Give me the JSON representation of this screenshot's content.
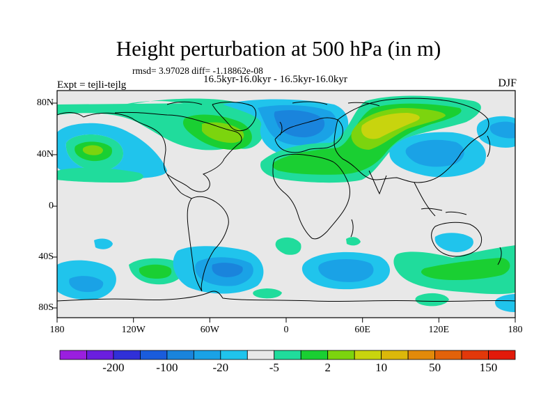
{
  "title": "Height perturbation at 500 hPa (in m)",
  "rmsd_text": "rmsd= 3.97028 diff= -1.18862e-08",
  "periods_text": "16.5kyr-16.0kyr - 16.5kyr-16.0kyr",
  "experiment": "Expt = tejli-tejlg",
  "season": "DJF",
  "axes": {
    "x_ticks": [
      "180",
      "120W",
      "60W",
      "0",
      "60E",
      "120E",
      "180"
    ],
    "y_ticks": [
      "80N",
      "40N",
      "0",
      "40S",
      "80S"
    ]
  },
  "colorbar": {
    "colors": [
      "#9a1fdf",
      "#6a1fdf",
      "#3030d8",
      "#1a5cdc",
      "#1a84dc",
      "#1aa2e6",
      "#20c4ec",
      "#e8e8e8",
      "#20dc9c",
      "#1acf32",
      "#7cd40e",
      "#c8d40e",
      "#dcb80a",
      "#e28a0a",
      "#e2620a",
      "#e2380a",
      "#e21a0a"
    ],
    "labels": [
      "-200",
      "-100",
      "-20",
      "-5",
      "2",
      "10",
      "50",
      "150"
    ]
  },
  "palette": {
    "land_bg": "#e8e8e8",
    "neg_light": "#20c4ec",
    "neg_mid": "#1aa2e6",
    "neg_strong": "#1a84dc",
    "pos_light": "#20dc9c",
    "pos_mid": "#1acf32",
    "pos_strong": "#7cd40e",
    "pos_max": "#c8d40e"
  }
}
